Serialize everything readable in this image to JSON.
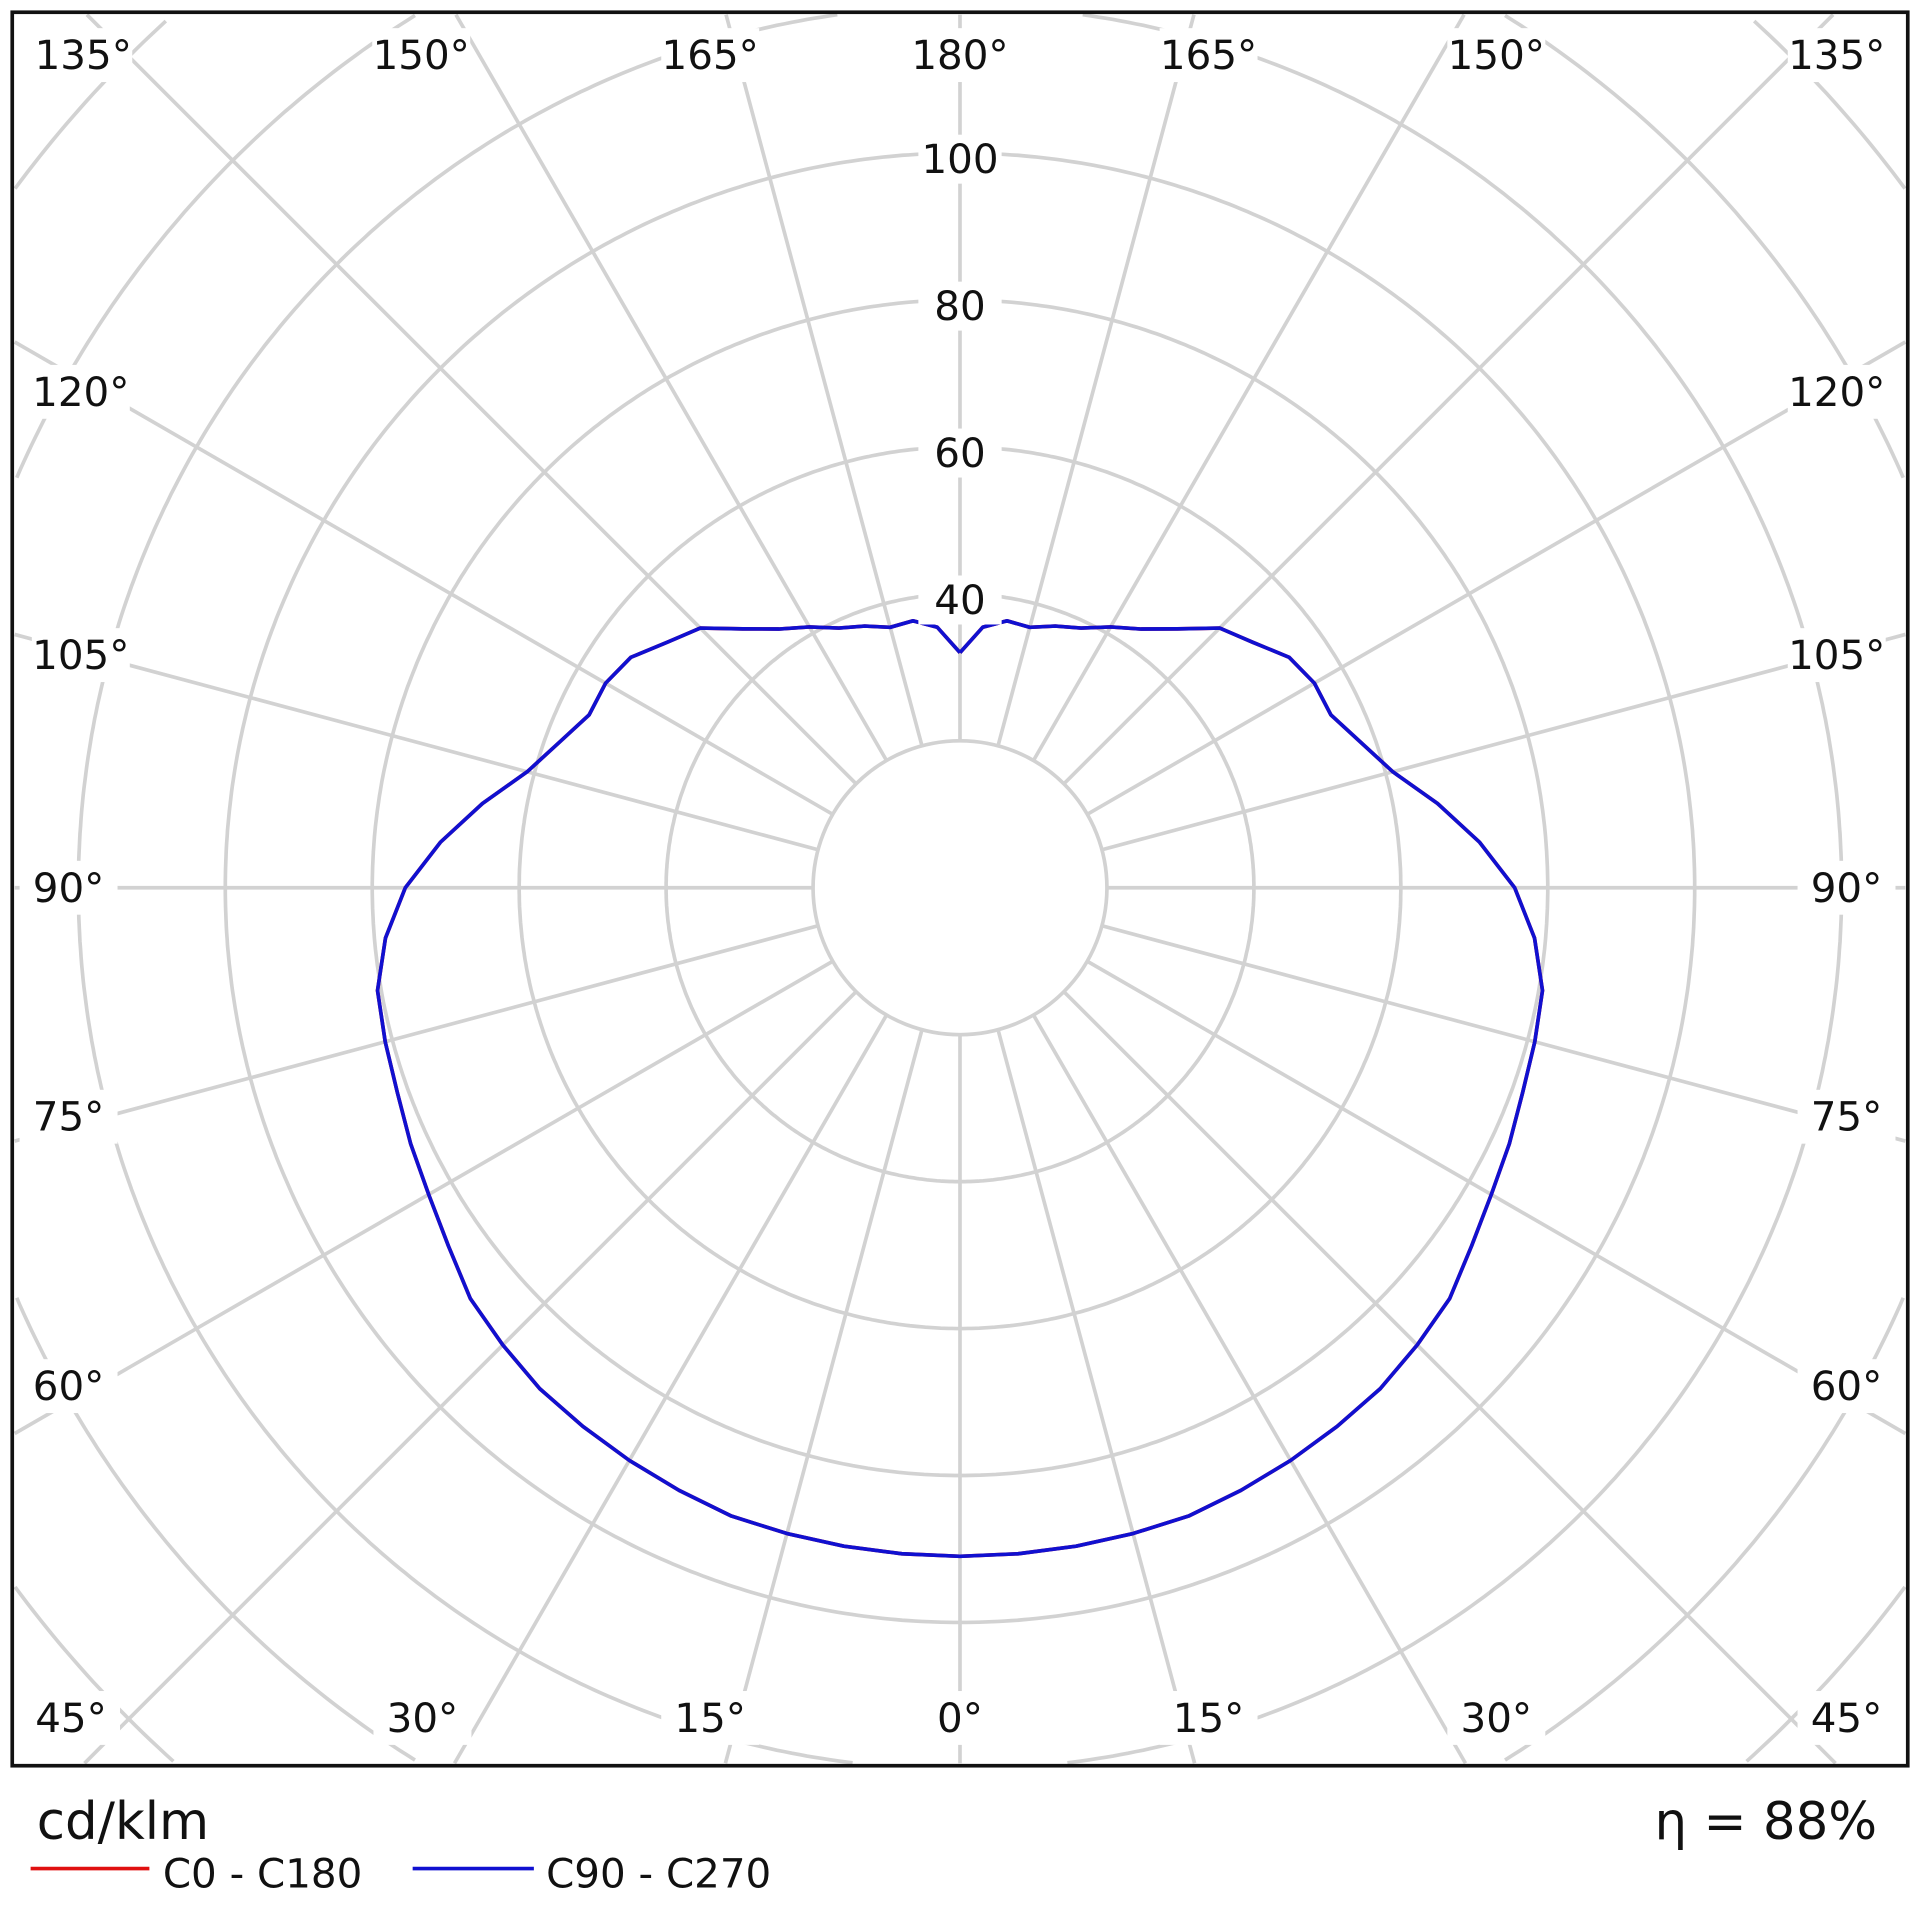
{
  "chart_data": {
    "type": "polar",
    "unit_label": "cd/klm",
    "efficiency_label": "η = 88%",
    "radial_ticks": [
      "100",
      "80",
      "60",
      "40"
    ],
    "radial_tick_values": [
      100,
      80,
      60,
      40
    ],
    "radial_range": [
      0,
      100
    ],
    "ring_step": 20,
    "angle_step_deg": 15,
    "grid": true,
    "legend_placement": "bottom-left",
    "angle_labels": {
      "top": [
        "135°",
        "150°",
        "165°",
        "180°",
        "165°",
        "150°",
        "135°"
      ],
      "left": [
        "120°",
        "105°",
        "90°",
        "75°",
        "60°"
      ],
      "right": [
        "120°",
        "105°",
        "90°",
        "75°",
        "60°"
      ],
      "bottom": [
        "45°",
        "30°",
        "15°",
        "0°",
        "15°",
        "30°",
        "45°"
      ]
    },
    "gamma": [
      0,
      5,
      10,
      15,
      20,
      25,
      30,
      35,
      40,
      45,
      50,
      55,
      60,
      65,
      70,
      75,
      80,
      85,
      90,
      95,
      100,
      105,
      110,
      115,
      120,
      125,
      130,
      135,
      140,
      145,
      150,
      155,
      160,
      165,
      170,
      175,
      180
    ],
    "series": [
      {
        "name": "C0 - C180",
        "color": "#e01010",
        "values": [
          91,
          91,
          91,
          91,
          91,
          90.5,
          90,
          89.5,
          89,
          88,
          87,
          85,
          83.5,
          82.5,
          81.5,
          81,
          80.5,
          78.5,
          75.5,
          71,
          66,
          61,
          58,
          55.7,
          55.7,
          54.7,
          52,
          50,
          46,
          43,
          41,
          39,
          37.9,
          36.7,
          36.9,
          35.6,
          32
        ]
      },
      {
        "name": "C90 - C270",
        "color": "#1010d0",
        "values": [
          91,
          91,
          91,
          91,
          91,
          90.5,
          90,
          89.5,
          89,
          88,
          87,
          85,
          83.5,
          82.5,
          81.5,
          81,
          80.5,
          78.5,
          75.5,
          71,
          66,
          61,
          58,
          55.7,
          55.7,
          54.7,
          52,
          50,
          46,
          43,
          41,
          39,
          37.9,
          36.7,
          36.9,
          35.6,
          32
        ]
      }
    ]
  }
}
